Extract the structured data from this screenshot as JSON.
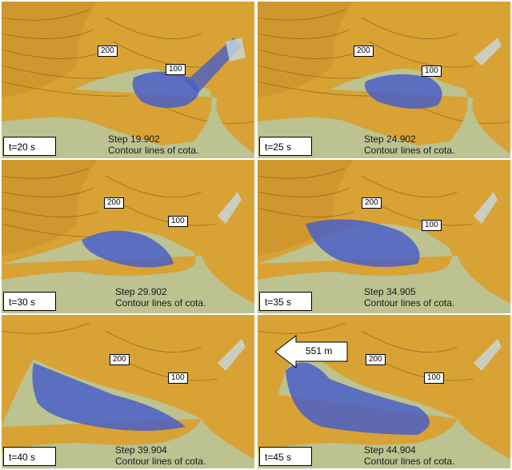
{
  "panels": [
    {
      "time": "t=20 s",
      "step": "Step 19.902",
      "caption": "Contour lines of cota.",
      "label_a": "200",
      "label_b": "100"
    },
    {
      "time": "t=25 s",
      "step": "Step 24.902",
      "caption": "Contour lines of cota.",
      "label_a": "200",
      "label_b": "100"
    },
    {
      "time": "t=30 s",
      "step": "Step 29.902",
      "caption": "Contour lines of cota.",
      "label_a": "200",
      "label_b": "100"
    },
    {
      "time": "t=35 s",
      "step": "Step 34.905",
      "caption": "Contour lines of cota.",
      "label_a": "200",
      "label_b": "100"
    },
    {
      "time": "t=40 s",
      "step": "Step 39.904",
      "caption": "Contour lines of cota.",
      "label_a": "200",
      "label_b": "100"
    },
    {
      "time": "t=45 s",
      "step": "Step 44.904",
      "caption": "Contour lines of cota.",
      "label_a": "200",
      "label_b": "100"
    }
  ],
  "arrow_label": "551 m",
  "colors": {
    "terrain": "#d9a030",
    "flow": "#4a5fc8",
    "deposit": "#b9c59a"
  }
}
